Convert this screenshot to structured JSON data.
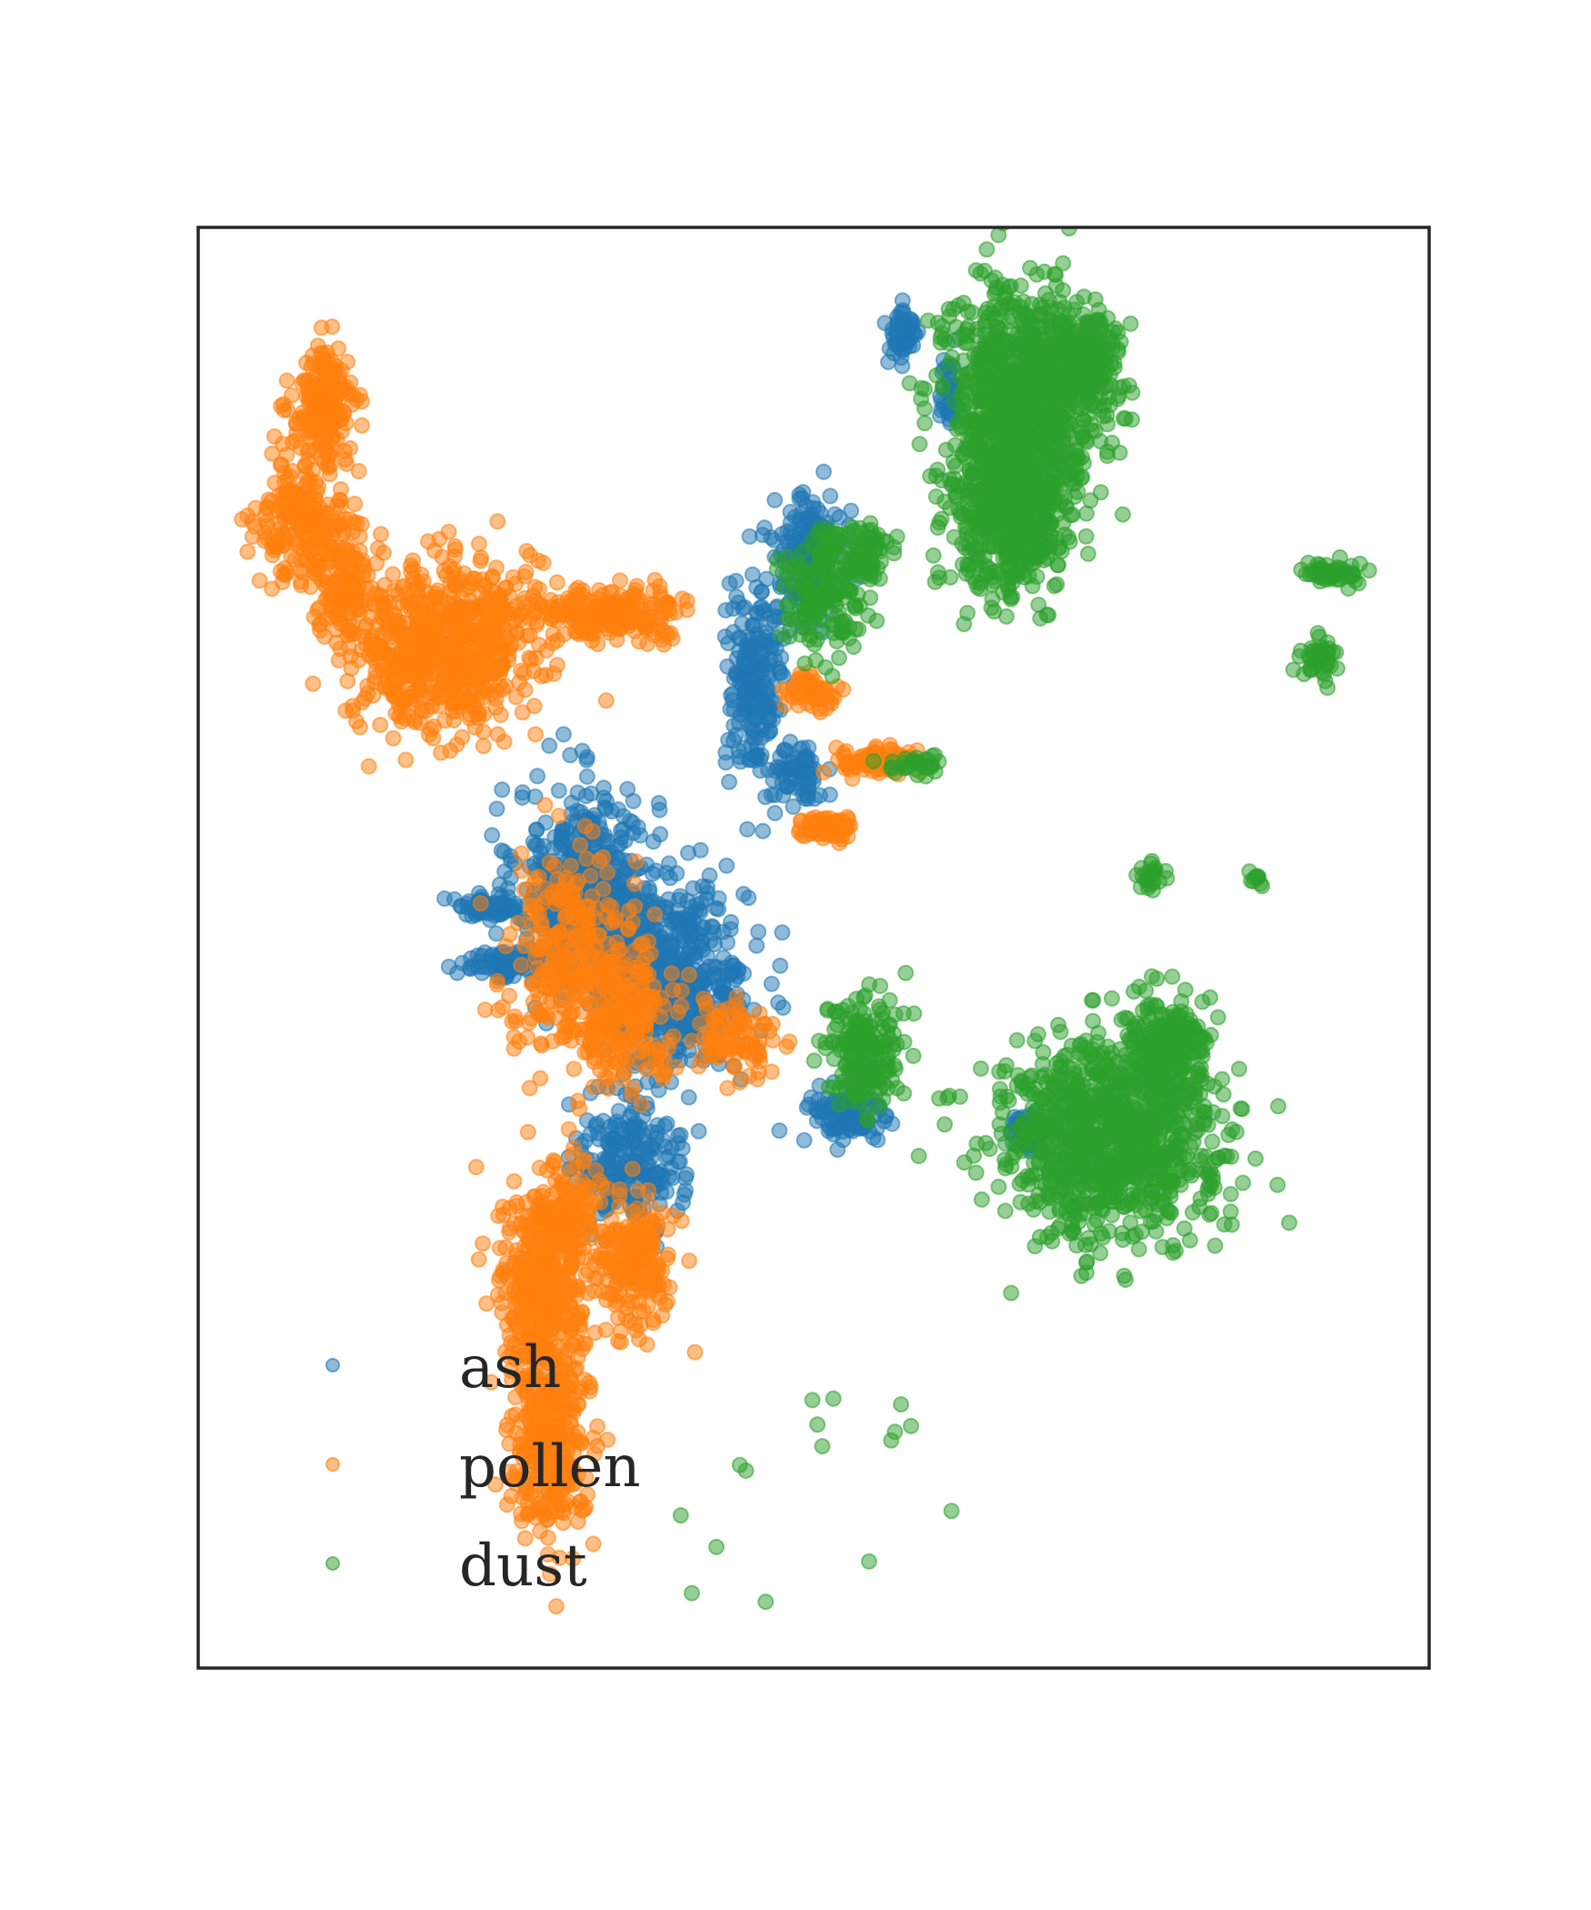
{
  "chart_data": {
    "type": "scatter",
    "title": "",
    "xlabel": "",
    "ylabel": "",
    "xlim": [
      0,
      100
    ],
    "ylim": [
      0,
      100
    ],
    "grid": false,
    "ticks": false,
    "legend": {
      "placement": "bottom-left"
    },
    "series": [
      {
        "name": "ash",
        "color": "#1f77b4",
        "clusters": [
          {
            "cx": 31.6,
            "cy": 54.0,
            "rx": 5.2,
            "ry": 6.5,
            "n": 520
          },
          {
            "cx": 38.7,
            "cy": 47.9,
            "rx": 5.5,
            "ry": 5.6,
            "n": 480
          },
          {
            "cx": 35.0,
            "cy": 35.2,
            "rx": 4.0,
            "ry": 4.2,
            "n": 220
          },
          {
            "cx": 45.2,
            "cy": 68.2,
            "rx": 2.2,
            "ry": 6.0,
            "n": 200
          },
          {
            "cx": 49.6,
            "cy": 77.3,
            "rx": 2.6,
            "ry": 3.8,
            "n": 160
          },
          {
            "cx": 24.8,
            "cy": 48.9,
            "rx": 3.0,
            "ry": 0.9,
            "n": 80
          },
          {
            "cx": 23.6,
            "cy": 52.8,
            "rx": 2.4,
            "ry": 0.7,
            "n": 70
          },
          {
            "cx": 52.5,
            "cy": 38.4,
            "rx": 3.0,
            "ry": 2.0,
            "n": 110
          },
          {
            "cx": 67.6,
            "cy": 37.1,
            "rx": 1.8,
            "ry": 1.3,
            "n": 60
          },
          {
            "cx": 57.3,
            "cy": 92.6,
            "rx": 1.2,
            "ry": 2.0,
            "n": 50
          },
          {
            "cx": 48.4,
            "cy": 61.9,
            "rx": 2.0,
            "ry": 2.0,
            "n": 70
          },
          {
            "cx": 60.9,
            "cy": 88.6,
            "rx": 1.0,
            "ry": 2.5,
            "n": 40
          }
        ]
      },
      {
        "name": "pollen",
        "color": "#ff7f0e",
        "clusters": [
          {
            "cx": 10.2,
            "cy": 87.5,
            "rx": 2.4,
            "ry": 3.6,
            "n": 190
          },
          {
            "cx": 8.6,
            "cy": 79.5,
            "rx": 3.6,
            "ry": 3.4,
            "n": 220
          },
          {
            "cx": 12.0,
            "cy": 75.0,
            "rx": 2.0,
            "ry": 3.2,
            "n": 110
          },
          {
            "cx": 19.8,
            "cy": 71.0,
            "rx": 6.5,
            "ry": 5.2,
            "n": 720
          },
          {
            "cx": 33.5,
            "cy": 73.2,
            "rx": 6.0,
            "ry": 1.6,
            "n": 220
          },
          {
            "cx": 30.0,
            "cy": 50.0,
            "rx": 4.5,
            "ry": 6.5,
            "n": 260
          },
          {
            "cx": 34.5,
            "cy": 45.5,
            "rx": 4.2,
            "ry": 4.5,
            "n": 220
          },
          {
            "cx": 28.5,
            "cy": 15.5,
            "rx": 2.8,
            "ry": 6.0,
            "n": 320
          },
          {
            "cx": 28.0,
            "cy": 26.0,
            "rx": 3.3,
            "ry": 6.5,
            "n": 360
          },
          {
            "cx": 35.5,
            "cy": 28.0,
            "rx": 2.8,
            "ry": 4.2,
            "n": 200
          },
          {
            "cx": 29.9,
            "cy": 31.5,
            "rx": 2.3,
            "ry": 3.6,
            "n": 130
          },
          {
            "cx": 55.2,
            "cy": 63.0,
            "rx": 3.0,
            "ry": 0.9,
            "n": 80
          },
          {
            "cx": 51.0,
            "cy": 58.3,
            "rx": 2.2,
            "ry": 0.8,
            "n": 60
          },
          {
            "cx": 49.8,
            "cy": 67.6,
            "rx": 2.0,
            "ry": 1.4,
            "n": 50
          },
          {
            "cx": 43.5,
            "cy": 44.0,
            "rx": 2.8,
            "ry": 2.3,
            "n": 90
          }
        ]
      },
      {
        "name": "dust",
        "color": "#2ca02c",
        "clusters": [
          {
            "cx": 66.8,
            "cy": 88.0,
            "rx": 5.6,
            "ry": 7.0,
            "n": 900
          },
          {
            "cx": 65.9,
            "cy": 80.0,
            "rx": 4.6,
            "ry": 5.0,
            "n": 500
          },
          {
            "cx": 72.0,
            "cy": 91.0,
            "rx": 2.6,
            "ry": 2.8,
            "n": 200
          },
          {
            "cx": 74.0,
            "cy": 36.7,
            "rx": 8.0,
            "ry": 6.0,
            "n": 1000
          },
          {
            "cx": 78.5,
            "cy": 43.4,
            "rx": 3.0,
            "ry": 3.0,
            "n": 200
          },
          {
            "cx": 50.7,
            "cy": 75.0,
            "rx": 3.2,
            "ry": 4.0,
            "n": 180
          },
          {
            "cx": 54.2,
            "cy": 77.6,
            "rx": 1.8,
            "ry": 1.8,
            "n": 70
          },
          {
            "cx": 54.0,
            "cy": 42.5,
            "rx": 3.0,
            "ry": 3.5,
            "n": 200
          },
          {
            "cx": 92.0,
            "cy": 76.0,
            "rx": 2.0,
            "ry": 0.7,
            "n": 60
          },
          {
            "cx": 91.0,
            "cy": 70.0,
            "rx": 1.6,
            "ry": 1.3,
            "n": 45
          },
          {
            "cx": 77.5,
            "cy": 55.0,
            "rx": 1.2,
            "ry": 1.0,
            "n": 25
          },
          {
            "cx": 86.0,
            "cy": 54.8,
            "rx": 0.6,
            "ry": 0.6,
            "n": 10
          },
          {
            "cx": 58.0,
            "cy": 62.7,
            "rx": 2.0,
            "ry": 0.7,
            "n": 30
          }
        ],
        "points": [
          [
            49.9,
            18.6
          ],
          [
            51.6,
            18.7
          ],
          [
            50.3,
            16.9
          ],
          [
            57.1,
            18.3
          ],
          [
            57.9,
            16.8
          ],
          [
            56.3,
            15.8
          ],
          [
            44.5,
            13.7
          ],
          [
            61.2,
            10.9
          ],
          [
            39.2,
            10.6
          ],
          [
            42.1,
            8.4
          ],
          [
            54.5,
            7.4
          ],
          [
            40.1,
            5.2
          ],
          [
            46.1,
            4.6
          ],
          [
            56.6,
            16.4
          ],
          [
            50.7,
            15.4
          ],
          [
            44.0,
            14.1
          ]
        ]
      }
    ]
  }
}
